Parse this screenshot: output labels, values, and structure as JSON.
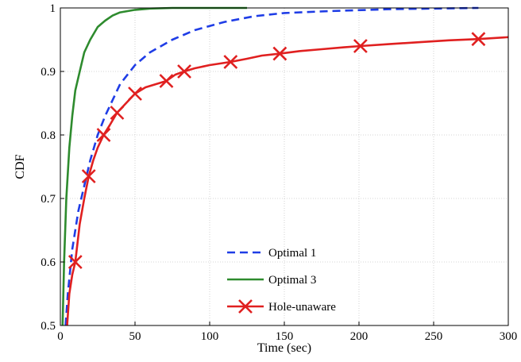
{
  "chart_data": {
    "type": "line",
    "title": "",
    "xlabel": "Time (sec)",
    "ylabel": "CDF",
    "xlim": [
      0,
      300
    ],
    "ylim": [
      0.5,
      1
    ],
    "xticks": [
      0,
      50,
      100,
      150,
      200,
      250,
      300
    ],
    "yticks": [
      0.5,
      0.6,
      0.7,
      0.8,
      0.9,
      1
    ],
    "ytick_labels": [
      "0.5",
      "0.6",
      "0.7",
      "0.8",
      "0.9",
      "1"
    ],
    "grid": true,
    "legend_position": "bottom-center",
    "series": [
      {
        "name": "Optimal 1",
        "color": "#1f3de6",
        "style": "dashed",
        "marker": "none",
        "x": [
          3.5,
          5,
          8,
          12,
          16,
          20,
          25,
          30,
          40,
          50,
          60,
          75,
          90,
          110,
          130,
          150,
          180,
          220,
          280
        ],
        "y": [
          0.5,
          0.55,
          0.62,
          0.68,
          0.72,
          0.76,
          0.8,
          0.83,
          0.88,
          0.91,
          0.93,
          0.95,
          0.965,
          0.978,
          0.987,
          0.992,
          0.995,
          0.998,
          1.0
        ]
      },
      {
        "name": "Optimal 3",
        "color": "#2e8b2e",
        "style": "solid",
        "marker": "none",
        "x": [
          1.5,
          2.5,
          4,
          6,
          8,
          10,
          13,
          16,
          20,
          25,
          30,
          35,
          40,
          50,
          60,
          75,
          90,
          110,
          125
        ],
        "y": [
          0.5,
          0.6,
          0.7,
          0.78,
          0.83,
          0.87,
          0.9,
          0.93,
          0.95,
          0.97,
          0.98,
          0.988,
          0.993,
          0.997,
          0.999,
          1.0,
          1.0,
          1.0,
          1.0
        ]
      },
      {
        "name": "Hole-unaware",
        "color": "#e02020",
        "style": "solid",
        "marker": "x",
        "x": [
          4.5,
          6,
          8,
          10,
          13,
          16,
          19,
          22,
          25,
          29,
          33,
          38,
          44,
          50,
          57,
          64,
          71,
          77,
          83,
          90,
          100,
          114,
          125,
          135,
          147,
          160,
          175,
          190,
          201,
          220,
          240,
          260,
          280,
          300
        ],
        "y": [
          0.5,
          0.55,
          0.58,
          0.6,
          0.66,
          0.7,
          0.735,
          0.76,
          0.78,
          0.8,
          0.815,
          0.835,
          0.85,
          0.865,
          0.875,
          0.88,
          0.885,
          0.895,
          0.9,
          0.905,
          0.91,
          0.915,
          0.92,
          0.925,
          0.928,
          0.932,
          0.935,
          0.938,
          0.94,
          0.943,
          0.946,
          0.949,
          0.951,
          0.954
        ],
        "marker_x": [
          10,
          19,
          29,
          38,
          50,
          71,
          83,
          114,
          147,
          201,
          280
        ],
        "marker_y": [
          0.6,
          0.735,
          0.8,
          0.835,
          0.865,
          0.885,
          0.9,
          0.915,
          0.928,
          0.94,
          0.951
        ]
      }
    ]
  }
}
